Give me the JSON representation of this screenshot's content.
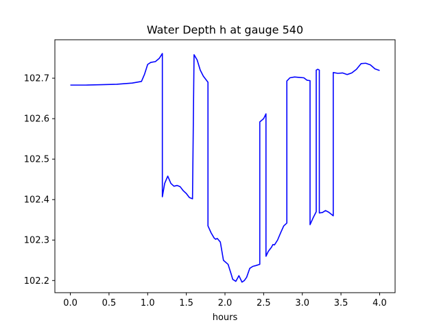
{
  "chart_data": {
    "type": "line",
    "title": "Water Depth h at gauge 540",
    "xlabel": "hours",
    "ylabel": "",
    "xlim": [
      -0.2,
      4.2
    ],
    "ylim": [
      102.17,
      102.795
    ],
    "xticks": [
      0.0,
      0.5,
      1.0,
      1.5,
      2.0,
      2.5,
      3.0,
      3.5,
      4.0
    ],
    "xtick_labels": [
      "0.0",
      "0.5",
      "1.0",
      "1.5",
      "2.0",
      "2.5",
      "3.0",
      "3.5",
      "4.0"
    ],
    "yticks": [
      102.2,
      102.3,
      102.4,
      102.5,
      102.6,
      102.7
    ],
    "ytick_labels": [
      "102.2",
      "102.3",
      "102.4",
      "102.5",
      "102.6",
      "102.7"
    ],
    "grid": false,
    "legend": "none",
    "series": [
      {
        "color": "#0000ff",
        "x": [
          0.0,
          0.2,
          0.4,
          0.6,
          0.8,
          0.92,
          0.96,
          1.0,
          1.04,
          1.1,
          1.15,
          1.19,
          1.19,
          1.22,
          1.26,
          1.3,
          1.34,
          1.38,
          1.42,
          1.46,
          1.5,
          1.54,
          1.58,
          1.6,
          1.6,
          1.64,
          1.68,
          1.72,
          1.78,
          1.78,
          1.82,
          1.86,
          1.88,
          1.9,
          1.94,
          1.98,
          2.04,
          2.08,
          2.1,
          2.14,
          2.18,
          2.22,
          2.25,
          2.28,
          2.32,
          2.36,
          2.4,
          2.45,
          2.45,
          2.5,
          2.53,
          2.53,
          2.56,
          2.6,
          2.62,
          2.64,
          2.68,
          2.72,
          2.76,
          2.8,
          2.8,
          2.84,
          2.9,
          2.96,
          3.02,
          3.06,
          3.1,
          3.1,
          3.14,
          3.18,
          3.18,
          3.2,
          3.22,
          3.22,
          3.26,
          3.3,
          3.34,
          3.38,
          3.4,
          3.4,
          3.46,
          3.52,
          3.58,
          3.64,
          3.7,
          3.76,
          3.82,
          3.88,
          3.94,
          4.0
        ],
        "y": [
          102.683,
          102.683,
          102.684,
          102.685,
          102.688,
          102.692,
          102.71,
          102.734,
          102.739,
          102.741,
          102.749,
          102.761,
          102.407,
          102.44,
          102.458,
          102.44,
          102.433,
          102.435,
          102.432,
          102.422,
          102.415,
          102.405,
          102.402,
          102.758,
          102.758,
          102.745,
          102.72,
          102.705,
          102.69,
          102.335,
          102.318,
          102.305,
          102.302,
          102.304,
          102.295,
          102.25,
          102.24,
          102.216,
          102.203,
          102.198,
          102.212,
          102.196,
          102.2,
          102.208,
          102.23,
          102.235,
          102.237,
          102.24,
          102.592,
          102.6,
          102.612,
          102.26,
          102.272,
          102.282,
          102.289,
          102.288,
          102.3,
          102.318,
          102.335,
          102.342,
          102.693,
          102.701,
          102.703,
          102.702,
          102.701,
          102.695,
          102.694,
          102.338,
          102.355,
          102.37,
          102.72,
          102.722,
          102.72,
          102.367,
          102.368,
          102.373,
          102.369,
          102.363,
          102.36,
          102.714,
          102.712,
          102.713,
          102.709,
          102.713,
          102.722,
          102.736,
          102.737,
          102.733,
          102.723,
          102.719
        ]
      }
    ]
  }
}
